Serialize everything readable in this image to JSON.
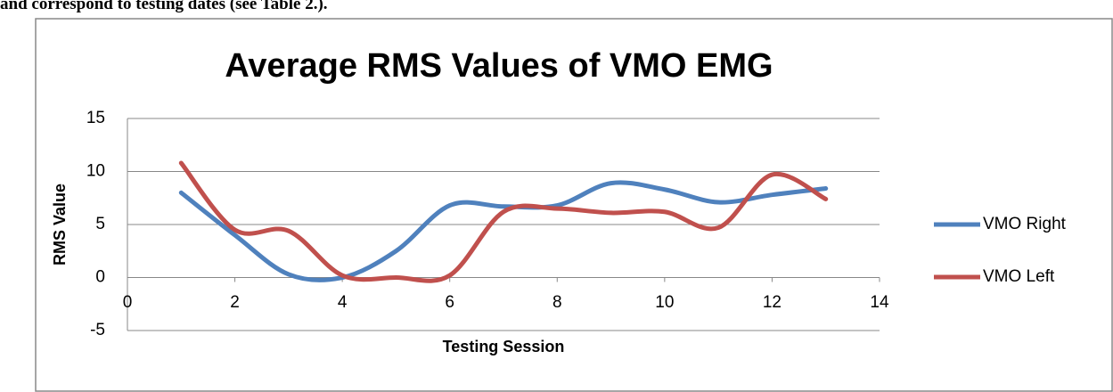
{
  "document_text": "and correspond to testing dates (see Table 2.).",
  "chart_data": {
    "type": "line",
    "title": "Average RMS Values of VMO EMG",
    "x_label": "Testing Session",
    "y_label": "RMS Value",
    "x": [
      1,
      2,
      3,
      4,
      5,
      6,
      7,
      8,
      9,
      10,
      11,
      12,
      13
    ],
    "series": [
      {
        "name": "VMO Right",
        "color": "#4f81bd",
        "values": [
          8,
          4,
          0.3,
          0,
          2.5,
          6.8,
          6.7,
          6.8,
          8.9,
          8.3,
          7.1,
          7.8,
          8.4
        ]
      },
      {
        "name": "VMO Left",
        "color": "#c0504d",
        "values": [
          10.8,
          4.5,
          4.4,
          0.2,
          0,
          0.2,
          6.2,
          6.5,
          6.1,
          6.2,
          4.7,
          9.7,
          7.4
        ]
      }
    ],
    "xlim": [
      0,
      14
    ],
    "xticks": [
      0,
      2,
      4,
      6,
      8,
      10,
      12,
      14
    ],
    "ylim": [
      -5,
      15
    ],
    "yticks": [
      -5,
      0,
      5,
      10,
      15
    ],
    "grid": true,
    "smooth": true,
    "legend": "right"
  }
}
